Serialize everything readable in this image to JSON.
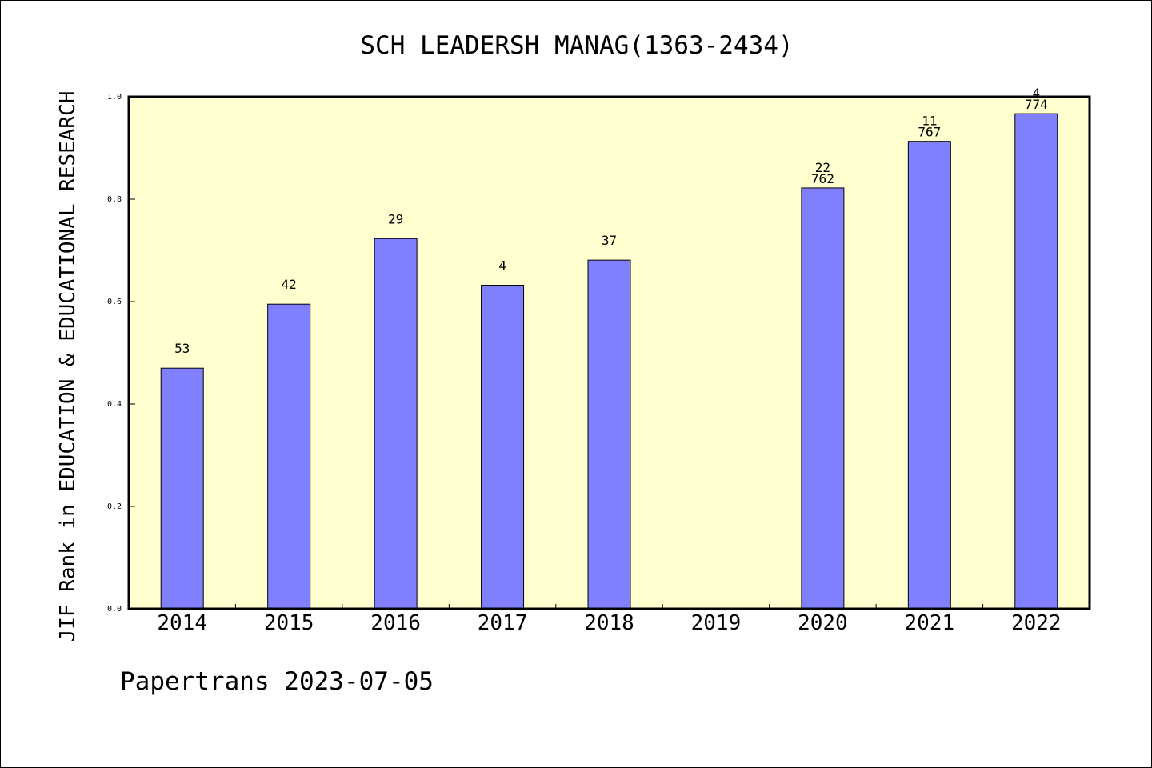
{
  "chart_data": {
    "type": "bar",
    "title": "SCH LEADERSH MANAG(1363-2434)",
    "ylabel": "JIF Rank in EDUCATION & EDUCATIONAL RESEARCH",
    "xlabel": "",
    "ylim": [
      0,
      1.0
    ],
    "y_ticks": [
      "0.0",
      "0.2",
      "0.4",
      "0.6",
      "0.8",
      "1.0"
    ],
    "categories": [
      "2014",
      "2015",
      "2016",
      "2017",
      "2018",
      "2019",
      "2020",
      "2021",
      "2022"
    ],
    "values": [
      0.47,
      0.595,
      0.723,
      0.632,
      0.681,
      null,
      0.822,
      0.913,
      0.967
    ],
    "bar_labels": [
      [
        "53"
      ],
      [
        "42"
      ],
      [
        "29"
      ],
      [
        "4"
      ],
      [
        "37"
      ],
      [],
      [
        "22",
        "762"
      ],
      [
        "11",
        "767"
      ],
      [
        "4",
        "774"
      ]
    ],
    "grid": false,
    "colors": {
      "bar_fill": "#8080ff",
      "plot_background": "#ffffd0",
      "axis": "#000000"
    }
  },
  "footer": {
    "text": "Papertrans 2023-07-05"
  }
}
